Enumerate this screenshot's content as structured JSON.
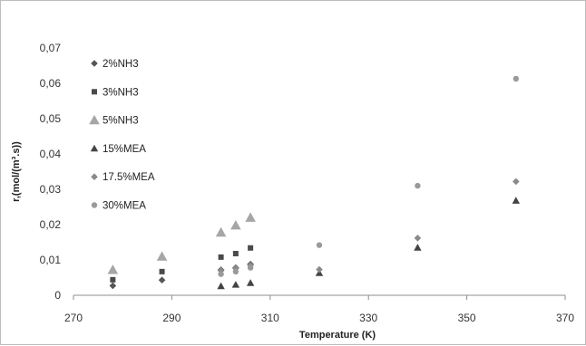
{
  "chart_data": {
    "type": "scatter",
    "xlabel": "Temperature (K)",
    "ylabel": "r,(mol/(m³.s))",
    "xlim": [
      270,
      370
    ],
    "ylim": [
      0,
      0.07
    ],
    "x_ticks": [
      "270",
      "290",
      "310",
      "330",
      "350",
      "370"
    ],
    "y_ticks": [
      "0",
      "0,01",
      "0,02",
      "0,03",
      "0,04",
      "0,05",
      "0,06",
      "0,07"
    ],
    "grid": false,
    "legend_position": "top-left",
    "series": [
      {
        "name": "2%NH3",
        "marker": "diamond",
        "color": "#555555",
        "points": [
          [
            278,
            0.0027
          ],
          [
            288,
            0.0043
          ],
          [
            300,
            0.0072
          ],
          [
            303,
            0.0078
          ],
          [
            306,
            0.0088
          ]
        ]
      },
      {
        "name": "3%NH3",
        "marker": "square",
        "color": "#4a4a4a",
        "points": [
          [
            278,
            0.0044
          ],
          [
            288,
            0.0067
          ],
          [
            300,
            0.0108
          ],
          [
            303,
            0.0118
          ],
          [
            306,
            0.0134
          ]
        ]
      },
      {
        "name": "5%NH3",
        "marker": "triangle",
        "color": "#a6a6a6",
        "points": [
          [
            278,
            0.0072
          ],
          [
            288,
            0.011
          ],
          [
            300,
            0.0178
          ],
          [
            303,
            0.0198
          ],
          [
            306,
            0.022
          ]
        ]
      },
      {
        "name": "15%MEA",
        "marker": "triangle",
        "color": "#444444",
        "points": [
          [
            300,
            0.0026
          ],
          [
            303,
            0.003
          ],
          [
            306,
            0.0035
          ],
          [
            320,
            0.0063
          ],
          [
            340,
            0.0135
          ],
          [
            360,
            0.0268
          ]
        ]
      },
      {
        "name": "17.5%MEA",
        "marker": "diamond",
        "color": "#8a8a8a",
        "points": [
          [
            300,
            0.007
          ],
          [
            303,
            0.0076
          ],
          [
            306,
            0.0085
          ],
          [
            320,
            0.0073
          ],
          [
            340,
            0.0162
          ],
          [
            360,
            0.0322
          ]
        ]
      },
      {
        "name": "30%MEA",
        "marker": "circle",
        "color": "#9a9a9a",
        "points": [
          [
            300,
            0.006
          ],
          [
            303,
            0.0067
          ],
          [
            306,
            0.0078
          ],
          [
            320,
            0.0142
          ],
          [
            340,
            0.031
          ],
          [
            360,
            0.0613
          ]
        ]
      }
    ]
  }
}
